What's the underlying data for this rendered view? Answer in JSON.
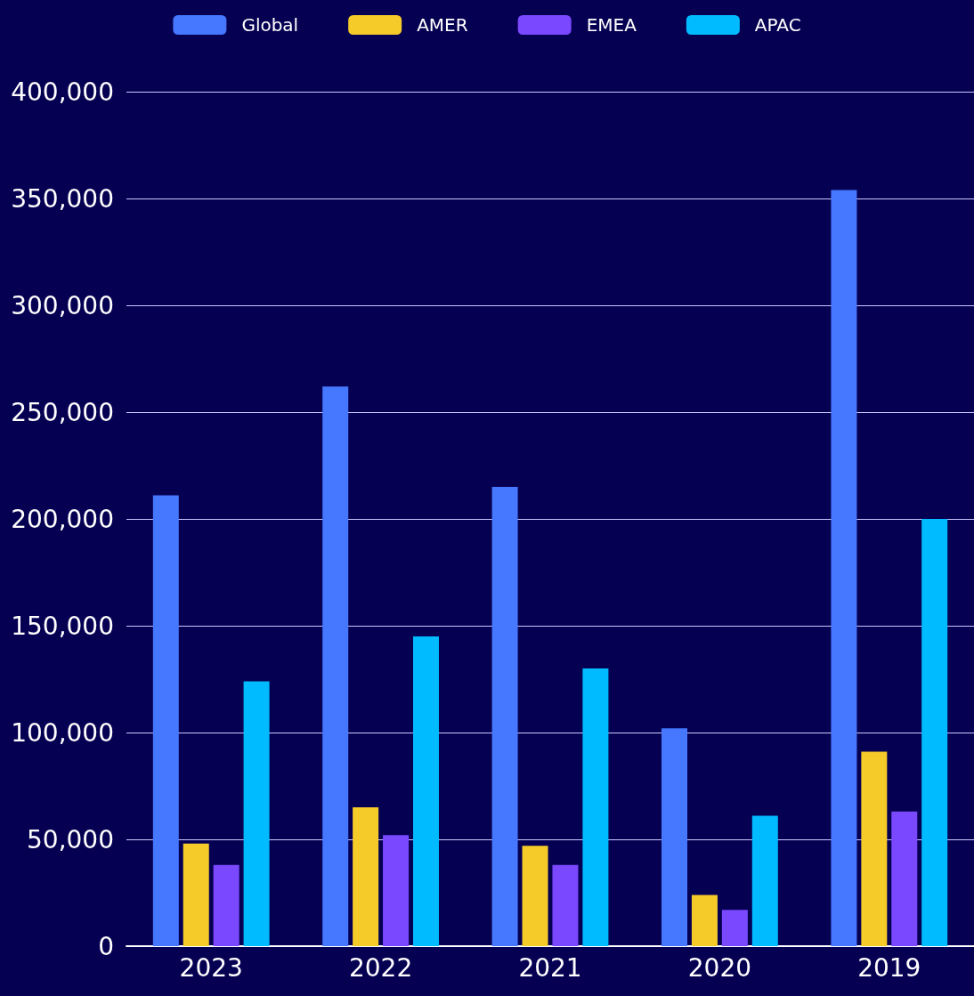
{
  "chart_data": {
    "type": "bar",
    "categories": [
      "2023",
      "2022",
      "2021",
      "2020",
      "2019"
    ],
    "series": [
      {
        "name": "Global",
        "color": "#4577ff",
        "values": [
          211000,
          262000,
          215000,
          102000,
          354000
        ]
      },
      {
        "name": "AMER",
        "color": "#f5cb29",
        "values": [
          48000,
          65000,
          47000,
          24000,
          91000
        ]
      },
      {
        "name": "EMEA",
        "color": "#7a48ff",
        "values": [
          38000,
          52000,
          38000,
          17000,
          63000
        ]
      },
      {
        "name": "APAC",
        "color": "#00bbff",
        "values": [
          124000,
          145000,
          130000,
          61000,
          200000
        ]
      }
    ],
    "ylim": [
      0,
      400000
    ],
    "yticks": [
      0,
      {
        "value": 50000,
        "label": "50,000"
      },
      {
        "value": 100000,
        "label": "100,000"
      },
      {
        "value": 150000,
        "label": "150,000"
      },
      {
        "value": 200000,
        "label": "200,000"
      },
      {
        "value": 250000,
        "label": "250,000"
      },
      {
        "value": 300000,
        "label": "300,000"
      },
      {
        "value": 350000,
        "label": "350,000"
      },
      {
        "value": 400000,
        "label": "400,000"
      }
    ],
    "grid": "y",
    "legend": "top"
  }
}
